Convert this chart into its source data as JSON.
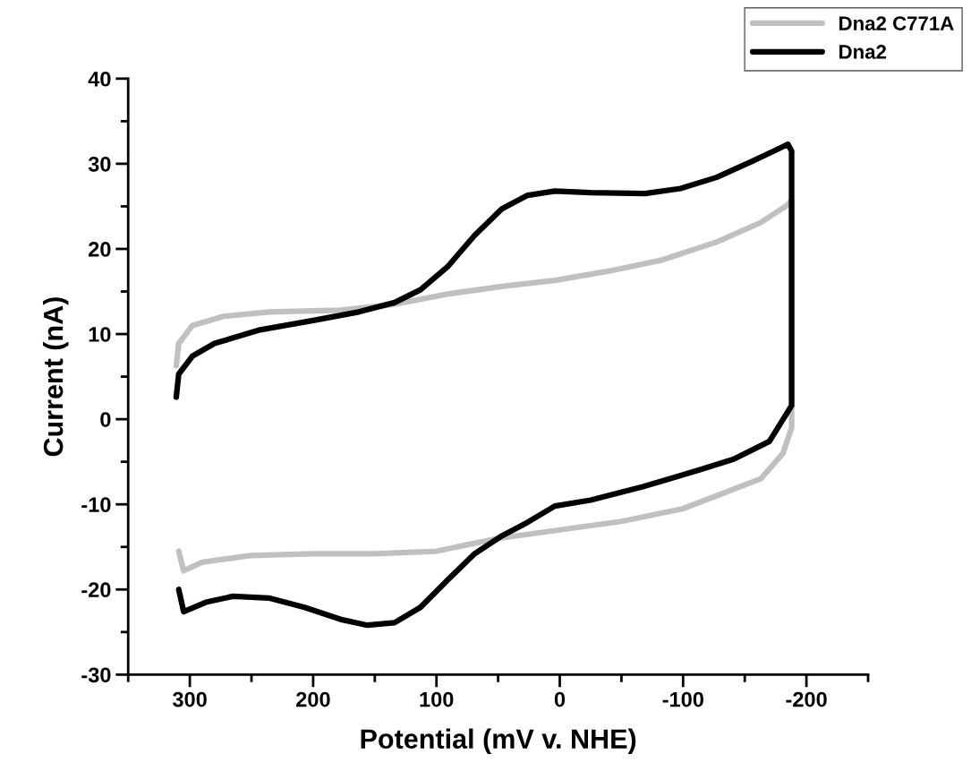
{
  "chart_data": {
    "type": "line",
    "xlabel": "Potential (mV v. NHE)",
    "ylabel": "Current (nA)",
    "xlim": [
      350,
      -250
    ],
    "ylim": [
      -30,
      40
    ],
    "xticks": [
      {
        "value": 350,
        "label": null
      },
      300,
      {
        "value": 250,
        "label": null
      },
      200,
      {
        "value": 150,
        "label": null
      },
      100,
      {
        "value": 50,
        "label": null
      },
      0,
      {
        "value": -50,
        "label": null
      },
      -100,
      {
        "value": -150,
        "label": null
      },
      -200,
      {
        "value": -250,
        "label": null
      }
    ],
    "yticks": [
      -30,
      {
        "value": -25,
        "label": null
      },
      -20,
      {
        "value": -15,
        "label": null
      },
      -10,
      {
        "value": -5,
        "label": null
      },
      0,
      {
        "value": 5,
        "label": null
      },
      10,
      {
        "value": 15,
        "label": null
      },
      20,
      {
        "value": 25,
        "label": null
      },
      30,
      {
        "value": 35,
        "label": null
      },
      40
    ],
    "grid": false,
    "legend": "top right",
    "marker": "none",
    "line_style": "solid",
    "series": [
      {
        "name": "Dna2 C771A",
        "color": "#c0c0c0",
        "x": [
          311,
          309,
          298,
          272,
          236,
          178,
          134,
          91,
          47,
          4,
          -40,
          -83,
          -127,
          -163,
          -185,
          -188,
          -188,
          -181,
          -163,
          -127,
          -100,
          -50,
          0,
          50,
          100,
          150,
          200,
          250,
          290,
          305,
          309
        ],
        "values": [
          6.3,
          8.9,
          11,
          12.1,
          12.6,
          12.8,
          13.5,
          14.7,
          15.6,
          16.3,
          17.4,
          18.7,
          20.8,
          23.1,
          25.2,
          25.8,
          -1,
          -4,
          -7,
          -9,
          -10.5,
          -12,
          -13,
          -14,
          -15.5,
          -15.8,
          -15.8,
          -16,
          -16.8,
          -17.8,
          -15.5
        ]
      },
      {
        "name": "Dna2",
        "color": "#000000",
        "x": [
          311,
          309,
          298,
          280,
          243,
          200,
          163,
          134,
          113,
          91,
          69,
          47,
          26,
          4,
          -25,
          -69,
          -98,
          -127,
          -156,
          -178,
          -185,
          -188,
          -188,
          -170,
          -141,
          -112,
          -68,
          -25,
          4,
          26,
          47,
          69,
          91,
          113,
          134,
          156,
          178,
          207,
          236,
          265,
          287,
          305,
          309
        ],
        "values": [
          2.6,
          5.3,
          7.4,
          8.9,
          10.5,
          11.6,
          12.6,
          13.7,
          15.2,
          17.9,
          21.6,
          24.7,
          26.3,
          26.8,
          26.6,
          26.5,
          27.1,
          28.4,
          30.3,
          31.8,
          32.3,
          31.5,
          1.6,
          -2.6,
          -4.7,
          -6,
          -7.9,
          -9.5,
          -10.2,
          -12.1,
          -13.7,
          -15.8,
          -18.9,
          -22.1,
          -23.9,
          -24.2,
          -23.5,
          -22.1,
          -21,
          -20.8,
          -21.5,
          -22.6,
          -20
        ]
      }
    ]
  }
}
